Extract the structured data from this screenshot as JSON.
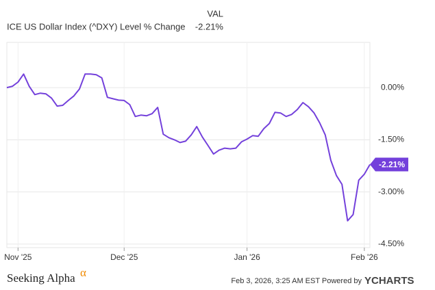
{
  "chart_data": {
    "type": "line",
    "title": "ICE US Dollar Index (^DXY) Level % Change",
    "legend": {
      "header": "VAL",
      "value": "-2.21%"
    },
    "categories": [
      null,
      null,
      "Nov '25",
      null,
      null,
      null,
      null,
      null,
      null,
      null,
      null,
      null,
      null,
      null,
      null,
      null,
      null,
      null,
      null,
      null,
      null,
      "Dec '25",
      null,
      null,
      null,
      null,
      null,
      null,
      null,
      null,
      null,
      null,
      null,
      null,
      null,
      null,
      null,
      null,
      null,
      null,
      null,
      null,
      null,
      "Jan '26",
      null,
      null,
      null,
      null,
      null,
      null,
      null,
      null,
      null,
      null,
      null,
      null,
      null,
      null,
      null,
      null,
      null,
      null,
      null,
      null,
      "Feb '26",
      null
    ],
    "series": [
      {
        "name": "ICE US Dollar Index (^DXY) Level % Change",
        "color": "#7340db",
        "values": [
          0,
          0.04,
          0.16,
          0.39,
          0.04,
          -0.2,
          -0.16,
          -0.18,
          -0.3,
          -0.53,
          -0.51,
          -0.37,
          -0.24,
          -0.04,
          0.39,
          0.39,
          0.37,
          0.28,
          -0.28,
          -0.32,
          -0.36,
          -0.37,
          -0.49,
          -0.83,
          -0.79,
          -0.81,
          -0.75,
          -0.57,
          -1.34,
          -1.44,
          -1.5,
          -1.58,
          -1.54,
          -1.36,
          -1.12,
          -1.42,
          -1.66,
          -1.91,
          -1.8,
          -1.74,
          -1.76,
          -1.74,
          -1.56,
          -1.48,
          -1.38,
          -1.4,
          -1.18,
          -1.03,
          -0.71,
          -0.73,
          -0.83,
          -0.77,
          -0.63,
          -0.43,
          -0.55,
          -0.73,
          -1.01,
          -1.36,
          -2.09,
          -2.53,
          -2.78,
          -3.83,
          -3.65,
          -2.66,
          -2.49,
          -2.21
        ]
      }
    ],
    "ylim": [
      -4.6,
      1.3
    ],
    "yticks": [
      {
        "value": 0,
        "label": "0.00%"
      },
      {
        "value": -1.5,
        "label": "-1.50%"
      },
      {
        "value": -3,
        "label": "-3.00%"
      },
      {
        "value": -4.5,
        "label": "-4.50%"
      }
    ],
    "grid": true,
    "footer": {
      "brand": "Seeking Alpha",
      "brand_symbol": "α",
      "timestamp": "Feb 3, 2026, 3:25 AM EST Powered by",
      "provider": "YCHARTS"
    }
  }
}
